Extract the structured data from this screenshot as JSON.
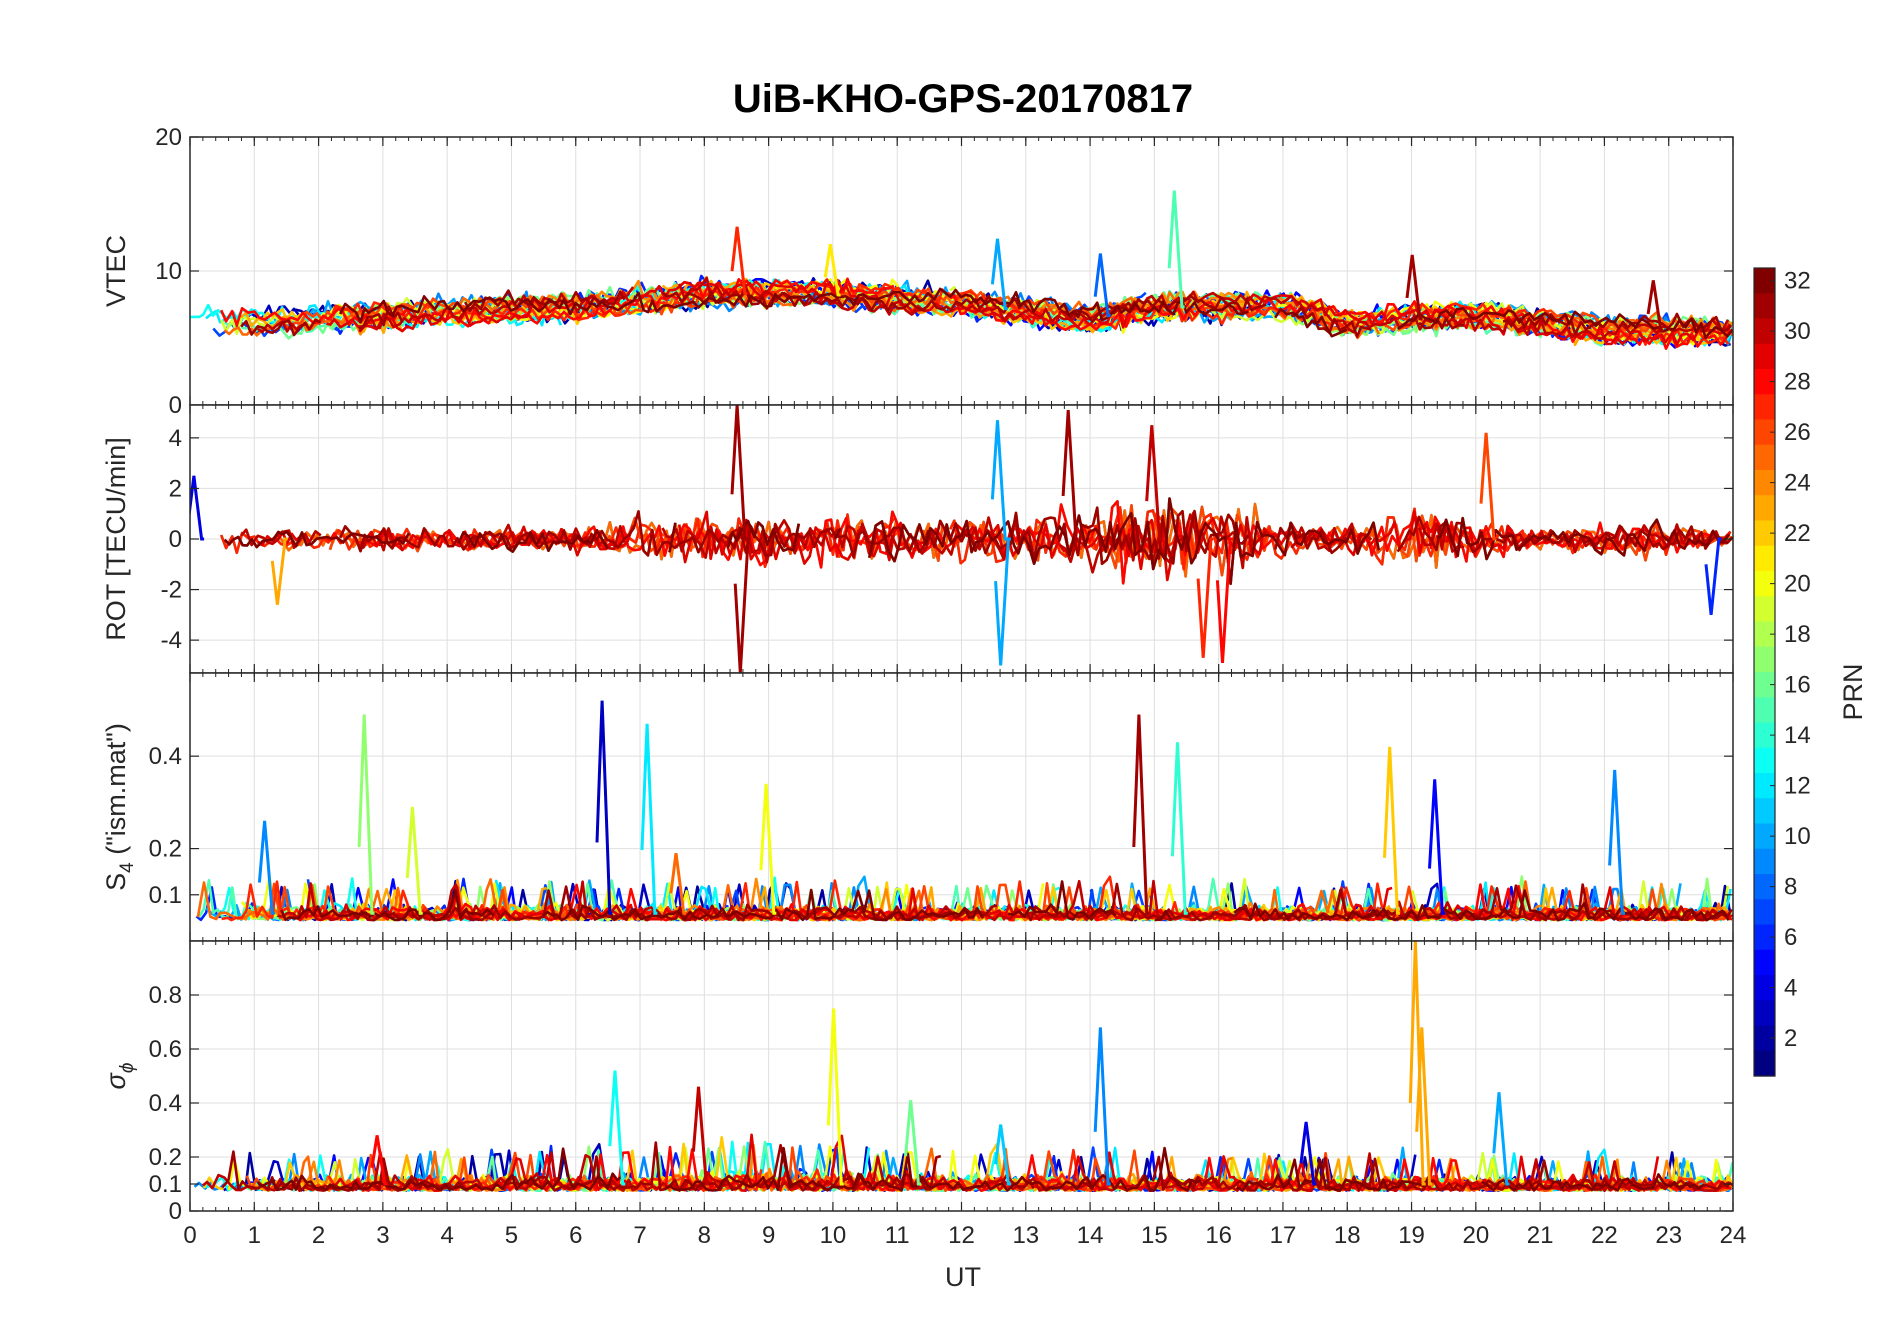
{
  "chart_data": {
    "type": "line",
    "title": "UiB-KHO-GPS-20170817",
    "xlabel": "UT",
    "xlim": [
      0,
      24
    ],
    "xticks": [
      "0",
      "1",
      "2",
      "3",
      "4",
      "5",
      "6",
      "7",
      "8",
      "9",
      "10",
      "11",
      "12",
      "13",
      "14",
      "15",
      "16",
      "17",
      "18",
      "19",
      "20",
      "21",
      "22",
      "23",
      "24"
    ],
    "colorbar": {
      "label": "PRN",
      "colormap": "jet",
      "range": [
        1,
        32
      ],
      "ticks": [
        "2",
        "4",
        "6",
        "8",
        "10",
        "12",
        "14",
        "16",
        "18",
        "20",
        "22",
        "24",
        "26",
        "28",
        "30",
        "32"
      ]
    },
    "panels": [
      {
        "name": "vtec",
        "ylabel": "VTEC",
        "ylim": [
          0,
          20
        ],
        "yticks": [
          "0",
          "10",
          "20"
        ],
        "baseline": 7.0,
        "noise": 0.45,
        "envelope": [
          [
            0,
            6.2
          ],
          [
            2,
            6.3
          ],
          [
            4,
            7.0
          ],
          [
            6,
            7.3
          ],
          [
            8,
            8.3
          ],
          [
            9.5,
            8.4
          ],
          [
            12,
            7.6
          ],
          [
            14,
            6.4
          ],
          [
            15,
            7.3
          ],
          [
            17,
            7.4
          ],
          [
            18,
            6.1
          ],
          [
            20,
            6.7
          ],
          [
            22,
            5.6
          ],
          [
            24,
            5.4
          ]
        ],
        "peaks": [
          [
            8.55,
            13.3,
            27
          ],
          [
            12.6,
            12.4,
            10
          ],
          [
            14.2,
            11.3,
            8
          ],
          [
            15.35,
            16.0,
            15
          ],
          [
            19.05,
            11.2,
            31
          ],
          [
            22.8,
            9.3,
            31
          ],
          [
            10.0,
            12.0,
            21
          ]
        ]
      },
      {
        "name": "rot",
        "ylabel": "ROT [TECU/min]",
        "ylim": [
          -5.3,
          5.3
        ],
        "yticks": [
          "-4",
          "-2",
          "0",
          "2",
          "4"
        ],
        "baseline": 0,
        "noise": 0.25,
        "envelope": [
          [
            0,
            0.6
          ],
          [
            6,
            0.7
          ],
          [
            7,
            1.2
          ],
          [
            9,
            1.4
          ],
          [
            12,
            1.3
          ],
          [
            14,
            1.6
          ],
          [
            15,
            2.2
          ],
          [
            16.5,
            1.8
          ],
          [
            17.5,
            0.6
          ],
          [
            19,
            1.6
          ],
          [
            20,
            1.2
          ],
          [
            21,
            0.5
          ],
          [
            22.7,
            1.0
          ],
          [
            24,
            0.4
          ]
        ],
        "peaks": [
          [
            8.55,
            5.3,
            31
          ],
          [
            8.6,
            -5.3,
            31
          ],
          [
            13.7,
            5.1,
            31
          ],
          [
            12.6,
            4.7,
            10
          ],
          [
            12.65,
            -5.0,
            10
          ],
          [
            15.0,
            4.5,
            30
          ],
          [
            15.8,
            -4.7,
            27
          ],
          [
            16.1,
            -4.9,
            28
          ],
          [
            20.2,
            4.2,
            26
          ],
          [
            23.7,
            -3.0,
            6
          ],
          [
            1.4,
            -2.6,
            23
          ],
          [
            0.1,
            2.5,
            4
          ]
        ]
      },
      {
        "name": "s4",
        "ylabel": "S_4 (\"ism.mat\")",
        "ylabel_main": "S",
        "ylabel_sub": "4",
        "ylabel_rest": " (\"ism.mat\")",
        "ylim": [
          0,
          0.58
        ],
        "yticks": [
          "0.1",
          "0.2",
          "0.4"
        ],
        "baseline": 0.06,
        "noise": 0.015,
        "envelope": [
          [
            0,
            0.07
          ],
          [
            24,
            0.07
          ]
        ],
        "peaks": [
          [
            2.75,
            0.49,
            17
          ],
          [
            3.5,
            0.29,
            19
          ],
          [
            6.45,
            0.52,
            3
          ],
          [
            7.15,
            0.47,
            12
          ],
          [
            9.0,
            0.34,
            20
          ],
          [
            14.8,
            0.49,
            31
          ],
          [
            15.4,
            0.43,
            14
          ],
          [
            18.7,
            0.42,
            22
          ],
          [
            19.4,
            0.35,
            5
          ],
          [
            22.2,
            0.37,
            9
          ],
          [
            1.2,
            0.26,
            9
          ],
          [
            7.6,
            0.19,
            25
          ]
        ]
      },
      {
        "name": "sigma",
        "ylabel": "σ_ϕ",
        "ylabel_main": "σ",
        "ylabel_sub": "ϕ",
        "ylim": [
          0,
          1.0
        ],
        "yticks": [
          "0",
          "0.1",
          "0.2",
          "0.4",
          "0.6",
          "0.8"
        ],
        "baseline": 0.1,
        "noise": 0.015,
        "envelope": [
          [
            0,
            0.11
          ],
          [
            7,
            0.13
          ],
          [
            9,
            0.18
          ],
          [
            11,
            0.13
          ],
          [
            24,
            0.11
          ]
        ],
        "peaks": [
          [
            10.05,
            0.75,
            20
          ],
          [
            19.1,
            1.0,
            23
          ],
          [
            19.2,
            0.68,
            23
          ],
          [
            14.2,
            0.68,
            9
          ],
          [
            6.65,
            0.52,
            13
          ],
          [
            7.95,
            0.46,
            30
          ],
          [
            11.25,
            0.41,
            16
          ],
          [
            12.65,
            0.32,
            11
          ],
          [
            17.4,
            0.33,
            4
          ],
          [
            20.4,
            0.44,
            10
          ],
          [
            2.95,
            0.28,
            28
          ]
        ]
      }
    ],
    "series_prn": [
      2,
      3,
      5,
      6,
      7,
      9,
      10,
      12,
      13,
      15,
      16,
      17,
      19,
      20,
      22,
      23,
      24,
      25,
      26,
      27,
      28,
      29,
      30,
      31,
      32
    ]
  }
}
